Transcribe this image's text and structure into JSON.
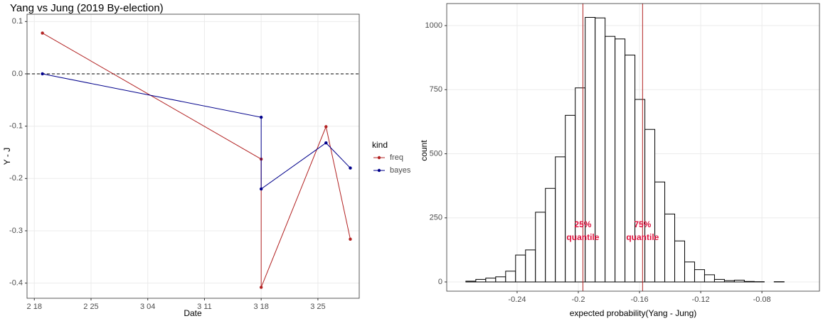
{
  "chart_data": [
    {
      "type": "line",
      "title": "Yang vs Jung (2019 By-election)",
      "xlabel": "Date",
      "ylabel": "Y - J",
      "xlim": [
        48.1,
        89.1
      ],
      "xticks": [
        {
          "value": 49,
          "label": "2 18"
        },
        {
          "value": 56,
          "label": "2 25"
        },
        {
          "value": 63,
          "label": "3 04"
        },
        {
          "value": 70,
          "label": "3 11"
        },
        {
          "value": 77,
          "label": "3 18"
        },
        {
          "value": 84,
          "label": "3 25"
        }
      ],
      "ylim": [
        -0.429,
        0.114
      ],
      "yticks": [
        0.1,
        {
          "value": 0,
          "label": "0.0"
        },
        -0.1,
        -0.2,
        -0.3,
        -0.4
      ],
      "hline": 0,
      "grid": true,
      "legend_title": "kind",
      "x": [
        50,
        77,
        77,
        85,
        88
      ],
      "series": [
        {
          "name": "freq",
          "color": "#b22222",
          "values": [
            0.078,
            -0.163,
            -0.408,
            -0.101,
            -0.316
          ]
        },
        {
          "name": "bayes",
          "color": "#00008b",
          "values": [
            0.0,
            -0.083,
            -0.22,
            -0.132,
            -0.18
          ]
        }
      ]
    },
    {
      "type": "histogram",
      "xlabel": "expected probability(Yang - Jung)",
      "ylabel": "count",
      "xlim": [
        -0.286,
        -0.0424
      ],
      "xticks": [
        -0.24,
        -0.2,
        -0.16,
        -0.12,
        -0.08
      ],
      "ylim": [
        -36,
        1086
      ],
      "yticks": [
        0,
        250,
        500,
        750,
        1000
      ],
      "grid": true,
      "bins": [
        -0.2735,
        -0.267,
        -0.2605,
        -0.254,
        -0.2475,
        -0.241,
        -0.2345,
        -0.228,
        -0.2215,
        -0.215,
        -0.2085,
        -0.202,
        -0.1955,
        -0.189,
        -0.1825,
        -0.176,
        -0.1695,
        -0.163,
        -0.1565,
        -0.15,
        -0.1435,
        -0.137,
        -0.1305,
        -0.124,
        -0.1175,
        -0.111,
        -0.1045,
        -0.098,
        -0.0915,
        -0.085,
        -0.0785,
        -0.072,
        -0.0655
      ],
      "values": [
        3,
        10,
        15,
        20,
        42,
        105,
        125,
        272,
        365,
        488,
        650,
        757,
        1032,
        1030,
        958,
        948,
        885,
        712,
        595,
        390,
        265,
        160,
        78,
        48,
        28,
        10,
        5,
        7,
        2,
        1,
        0,
        1
      ],
      "color": "#000000",
      "vlines": [
        {
          "x": -0.197,
          "color": "#b22222",
          "lines": [
            "25%",
            "quantile"
          ]
        },
        {
          "x": -0.158,
          "color": "#b22222",
          "lines": [
            "75%",
            "quantile"
          ]
        }
      ]
    }
  ]
}
